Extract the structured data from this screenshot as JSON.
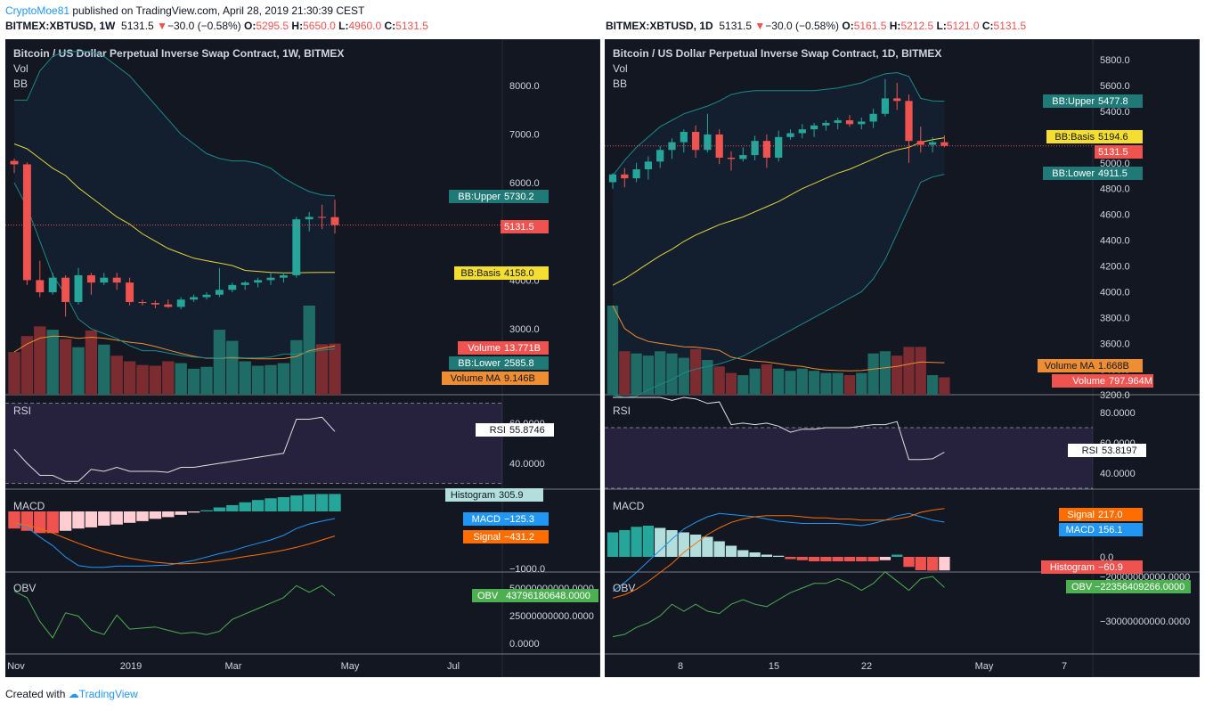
{
  "publish": {
    "user": "CryptoMoe81",
    "text": " published on TradingView.com, April 28, 2019 21:30:39 CEST"
  },
  "footer": {
    "created": "Created with",
    "brand": "TradingView"
  },
  "colors": {
    "bg": "#131722",
    "up": "#26a69a",
    "down": "#ef5350",
    "bb": "#1b8a86",
    "basis": "#e2d33a",
    "volma": "#ef8d33",
    "rsi": "#e0e0e0",
    "macd": "#2196f3",
    "signal": "#ff6d00",
    "obv": "#4caf50"
  },
  "left": {
    "header": {
      "symbol": "BITMEX:XBTUSD, 1W",
      "last": "5131.5",
      "change": "−30.0 (−0.58%)",
      "o": "5295.5",
      "h": "5650.0",
      "l": "4960.0",
      "c": "5131.5"
    },
    "title": "Bitcoin / US Dollar Perpetual Inverse Swap Contract, 1W, BITMEX",
    "legend": [
      "Vol",
      "BB"
    ],
    "price_axis": [
      "8000.0",
      "7000.0",
      "6000.0",
      "4000.0",
      "3000.0"
    ],
    "labels": {
      "bb_upper": "BB:Upper",
      "bb_upper_v": "5730.2",
      "last": "5131.5",
      "bb_basis": "BB:Basis",
      "bb_basis_v": "4158.0",
      "volume": "Volume",
      "volume_v": "13.771B",
      "bb_lower": "BB:Lower",
      "bb_lower_v": "2585.8",
      "volume_ma": "Volume MA",
      "volume_ma_v": "9.146B"
    },
    "rsi": {
      "title": "RSI",
      "axis": [
        "60.0000",
        "40.0000"
      ],
      "label": "RSI",
      "value": "55.8746"
    },
    "macd": {
      "title": "MACD",
      "hist_label": "Histogram",
      "hist_value": "305.9",
      "macd_label": "MACD",
      "macd_value": "−125.3",
      "signal_label": "Signal",
      "signal_value": "−431.2",
      "axis": [
        "−1000.0"
      ]
    },
    "obv": {
      "title": "OBV",
      "label": "OBV",
      "value": "43796180648.0000",
      "axis": [
        "50000000000.0000",
        "25000000000.0000",
        "0.0000"
      ]
    },
    "time_axis": [
      "Nov",
      "2019",
      "Mar",
      "May",
      "Jul"
    ]
  },
  "right": {
    "header": {
      "symbol": "BITMEX:XBTUSD, 1D",
      "last": "5131.5",
      "change": "−30.0 (−0.58%)",
      "o": "5161.5",
      "h": "5212.5",
      "l": "5121.0",
      "c": "5131.5"
    },
    "title": "Bitcoin / US Dollar Perpetual Inverse Swap Contract, 1D, BITMEX",
    "legend": [
      "Vol",
      "BB"
    ],
    "price_axis": [
      "5800.0",
      "5600.0",
      "5400.0",
      "5000.0",
      "4800.0",
      "4600.0",
      "4400.0",
      "4200.0",
      "4000.0",
      "3800.0",
      "3600.0",
      "3400.0",
      "3200.0"
    ],
    "labels": {
      "bb_upper": "BB:Upper",
      "bb_upper_v": "5477.8",
      "bb_basis": "BB:Basis",
      "bb_basis_v": "5194.6",
      "last": "5131.5",
      "bb_lower": "BB:Lower",
      "bb_lower_v": "4911.5",
      "volume_ma": "Volume MA",
      "volume_ma_v": "1.668B",
      "volume": "Volume",
      "volume_v": "797.964M"
    },
    "rsi": {
      "title": "RSI",
      "axis": [
        "80.0000",
        "60.0000",
        "40.0000"
      ],
      "label": "RSI",
      "value": "53.8197"
    },
    "macd": {
      "title": "MACD",
      "signal_label": "Signal",
      "signal_value": "217.0",
      "macd_label": "MACD",
      "macd_value": "156.1",
      "hist_label": "Histogram",
      "hist_value": "−60.9",
      "axis": [
        "0.0"
      ]
    },
    "obv": {
      "title": "OBV",
      "label": "OBV",
      "value": "−22356409266.0000",
      "axis": [
        "−20000000000.0000",
        "−30000000000.0000"
      ]
    },
    "time_axis": [
      "8",
      "15",
      "22",
      "May",
      "7"
    ]
  },
  "chart_data": [
    {
      "type": "candlestick",
      "title": "Bitcoin / US Dollar Perpetual Inverse Swap Contract, 1W, BITMEX",
      "interval": "1W",
      "ohlc": [
        [
          6450,
          6500,
          6200,
          6380
        ],
        [
          6380,
          6420,
          3900,
          4000
        ],
        [
          4000,
          4400,
          3650,
          3750
        ],
        [
          3750,
          4150,
          3700,
          4050
        ],
        [
          4050,
          4100,
          3250,
          3550
        ],
        [
          3550,
          4250,
          3500,
          4100
        ],
        [
          4100,
          4150,
          3700,
          3950
        ],
        [
          3950,
          4150,
          3900,
          4050
        ],
        [
          4050,
          4150,
          3800,
          3950
        ],
        [
          3950,
          4050,
          3480,
          3550
        ],
        [
          3550,
          3600,
          3480,
          3530
        ],
        [
          3530,
          3580,
          3420,
          3500
        ],
        [
          3500,
          3600,
          3430,
          3450
        ],
        [
          3450,
          3650,
          3400,
          3600
        ],
        [
          3600,
          3700,
          3550,
          3650
        ],
        [
          3650,
          3750,
          3600,
          3700
        ],
        [
          3700,
          4250,
          3650,
          3800
        ],
        [
          3800,
          3950,
          3750,
          3900
        ],
        [
          3900,
          3980,
          3800,
          3950
        ],
        [
          3950,
          4050,
          3850,
          4000
        ],
        [
          4000,
          4150,
          3900,
          4050
        ],
        [
          4050,
          4150,
          3950,
          4100
        ],
        [
          4100,
          5300,
          4050,
          5250
        ],
        [
          5250,
          5400,
          5000,
          5300
        ],
        [
          5300,
          5550,
          5050,
          5295
        ],
        [
          5295,
          5650,
          4960,
          5131.5
        ]
      ],
      "bb_upper": [
        7700,
        7700,
        8300,
        8600,
        8700,
        8700,
        8700,
        8600,
        8400,
        8200,
        7900,
        7600,
        7300,
        7000,
        6800,
        6600,
        6500,
        6450,
        6450,
        6400,
        6300,
        6100,
        5950,
        5820,
        5750,
        5730
      ],
      "bb_basis": [
        6800,
        6700,
        6500,
        6300,
        6150,
        5900,
        5700,
        5500,
        5300,
        5150,
        4950,
        4800,
        4650,
        4550,
        4450,
        4400,
        4350,
        4300,
        4200,
        4180,
        4160,
        4150,
        4150,
        4155,
        4157,
        4158
      ],
      "bb_lower": [
        6000,
        5500,
        4800,
        4100,
        3700,
        3200,
        3000,
        2900,
        2800,
        2650,
        2550,
        2550,
        2500,
        2450,
        2420,
        2400,
        2400,
        2420,
        2400,
        2400,
        2420,
        2480,
        2480,
        2520,
        2560,
        2586
      ],
      "volume_b": [
        11.5,
        15.8,
        18.4,
        17.5,
        15.0,
        12.8,
        17.3,
        13.5,
        10.5,
        9.0,
        8.0,
        7.8,
        9.0,
        8.5,
        7.0,
        7.5,
        17.5,
        14.5,
        9.0,
        7.8,
        8.0,
        8.5,
        14.7,
        24.0,
        13.6,
        13.77
      ],
      "rsi": [
        47,
        40,
        34,
        34,
        31,
        31,
        37,
        36,
        38,
        36,
        36,
        36,
        35.5,
        38,
        38,
        39,
        40,
        41,
        42,
        43,
        44,
        45,
        62,
        62,
        63,
        55.87
      ],
      "macd": [
        -200,
        -280,
        -450,
        -600,
        -800,
        -950,
        -980,
        -980,
        -960,
        -960,
        -960,
        -950,
        -940,
        -900,
        -860,
        -800,
        -740,
        -690,
        -620,
        -560,
        -500,
        -420,
        -300,
        -220,
        -170,
        -125.3
      ],
      "signal": [
        -200,
        -240,
        -300,
        -380,
        -470,
        -560,
        -640,
        -710,
        -770,
        -820,
        -860,
        -890,
        -910,
        -920,
        -910,
        -890,
        -860,
        -830,
        -790,
        -760,
        -720,
        -680,
        -630,
        -570,
        -500,
        -431.2
      ],
      "histogram": [
        -300,
        -340,
        -380,
        -380,
        -340,
        -300,
        -280,
        -250,
        -230,
        -200,
        -170,
        -130,
        -100,
        -60,
        -20,
        20,
        70,
        110,
        160,
        200,
        230,
        250,
        280,
        300,
        305,
        305.9
      ],
      "obv_b": [
        48,
        42,
        20,
        5,
        28,
        25,
        12,
        8,
        26,
        13,
        14,
        15,
        12,
        9,
        10,
        8,
        11,
        22,
        27,
        32,
        37,
        42,
        53,
        47,
        53,
        43.8
      ]
    },
    {
      "type": "candlestick",
      "title": "Bitcoin / US Dollar Perpetual Inverse Swap Contract, 1D, BITMEX",
      "interval": "1D",
      "ohlc": [
        [
          4850,
          4920,
          4800,
          4910
        ],
        [
          4910,
          4960,
          4810,
          4880
        ],
        [
          4880,
          5000,
          4850,
          4950
        ],
        [
          4950,
          5050,
          4870,
          5010
        ],
        [
          5010,
          5130,
          4960,
          5100
        ],
        [
          5100,
          5190,
          5030,
          5160
        ],
        [
          5160,
          5260,
          5080,
          5240
        ],
        [
          5240,
          5290,
          5040,
          5100
        ],
        [
          5100,
          5380,
          5080,
          5220
        ],
        [
          5220,
          5260,
          4990,
          5040
        ],
        [
          5040,
          5090,
          4940,
          5030
        ],
        [
          5030,
          5120,
          5010,
          5060
        ],
        [
          5060,
          5210,
          5020,
          5170
        ],
        [
          5170,
          5220,
          4960,
          5040
        ],
        [
          5040,
          5250,
          5010,
          5200
        ],
        [
          5200,
          5260,
          5180,
          5230
        ],
        [
          5230,
          5300,
          5190,
          5260
        ],
        [
          5260,
          5310,
          5200,
          5290
        ],
        [
          5290,
          5330,
          5250,
          5310
        ],
        [
          5310,
          5350,
          5260,
          5330
        ],
        [
          5330,
          5370,
          5280,
          5300
        ],
        [
          5300,
          5350,
          5260,
          5320
        ],
        [
          5320,
          5420,
          5270,
          5380
        ],
        [
          5380,
          5650,
          5360,
          5500
        ],
        [
          5500,
          5620,
          5410,
          5480
        ],
        [
          5480,
          5530,
          5000,
          5170
        ],
        [
          5170,
          5280,
          5080,
          5140
        ],
        [
          5140,
          5200,
          5080,
          5160
        ],
        [
          5160,
          5212.5,
          5121,
          5131.5
        ]
      ],
      "bb_upper": [
        4900,
        5020,
        5120,
        5200,
        5280,
        5330,
        5380,
        5410,
        5440,
        5480,
        5530,
        5550,
        5560,
        5560,
        5560,
        5560,
        5560,
        5560,
        5570,
        5580,
        5600,
        5620,
        5660,
        5690,
        5700,
        5670,
        5500,
        5480,
        5477.8
      ],
      "bb_basis": [
        4050,
        4100,
        4160,
        4220,
        4280,
        4330,
        4390,
        4440,
        4480,
        4520,
        4550,
        4580,
        4620,
        4660,
        4700,
        4750,
        4800,
        4840,
        4880,
        4920,
        4950,
        4990,
        5030,
        5070,
        5100,
        5120,
        5160,
        5180,
        5194.6
      ],
      "bb_lower": [
        3200,
        3180,
        3190,
        3240,
        3280,
        3320,
        3370,
        3400,
        3420,
        3440,
        3470,
        3500,
        3550,
        3600,
        3650,
        3700,
        3750,
        3800,
        3850,
        3900,
        3950,
        4000,
        4100,
        4250,
        4450,
        4650,
        4850,
        4890,
        4911.5
      ],
      "volume_b": [
        4.1,
        2.0,
        1.9,
        1.8,
        2.0,
        1.9,
        1.7,
        2.1,
        1.6,
        1.3,
        1.0,
        0.9,
        1.2,
        1.4,
        1.2,
        1.1,
        1.2,
        1.1,
        1.0,
        1.0,
        0.9,
        1.0,
        1.9,
        2.0,
        1.8,
        2.2,
        2.2,
        0.9,
        0.8
      ],
      "rsi": [
        90,
        90,
        90,
        90,
        90,
        88,
        90,
        89,
        86,
        87,
        72,
        73,
        72,
        73,
        71,
        67,
        69,
        69,
        70,
        70,
        70,
        71,
        72,
        72,
        74,
        49,
        49,
        49.5,
        53.82
      ],
      "macd": [
        -155,
        -115,
        -70,
        -20,
        30,
        80,
        125,
        155,
        180,
        195,
        190,
        185,
        180,
        170,
        160,
        155,
        150,
        150,
        150,
        150,
        145,
        140,
        150,
        165,
        185,
        195,
        180,
        165,
        156.1
      ],
      "signal": [
        -185,
        -170,
        -145,
        -110,
        -70,
        -30,
        20,
        60,
        100,
        130,
        155,
        170,
        180,
        185,
        185,
        185,
        180,
        175,
        175,
        170,
        170,
        165,
        165,
        165,
        170,
        180,
        200,
        210,
        217.0
      ],
      "histogram": [
        110,
        120,
        135,
        140,
        130,
        120,
        110,
        100,
        90,
        70,
        50,
        30,
        20,
        10,
        5,
        -10,
        -15,
        -20,
        -20,
        -20,
        -20,
        -20,
        -20,
        -15,
        10,
        -45,
        -60,
        -62,
        -60.9
      ],
      "obv_b": [
        -33,
        -32.5,
        -31,
        -30,
        -28.5,
        -26,
        -27.5,
        -26,
        -27.5,
        -28,
        -26,
        -25,
        -26,
        -26.5,
        -25,
        -23.5,
        -22.5,
        -21.5,
        -21.5,
        -20.5,
        -21.5,
        -23,
        -21.5,
        -19,
        -21,
        -23,
        -20.5,
        -20,
        -22.36
      ]
    }
  ]
}
